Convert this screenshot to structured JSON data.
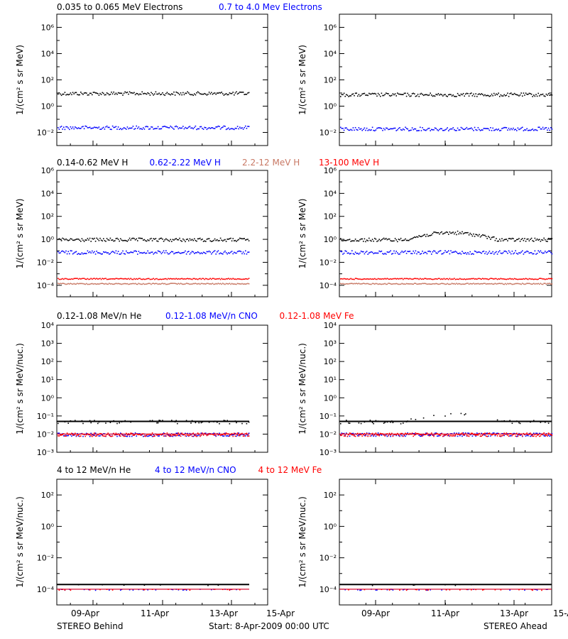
{
  "footer": {
    "left": "STEREO Behind",
    "center": "Start:  8-Apr-2009 00:00 UTC",
    "right": "STEREO Ahead"
  },
  "colors": {
    "black": "#000000",
    "blue": "#0000ff",
    "tan": "#c87864",
    "red": "#ff0000"
  },
  "chart_data": [
    {
      "type": "scatter",
      "panel": "Electrons - STEREO Behind",
      "ylabel": "1/(cm² s sr MeV)",
      "yscale": "log",
      "ylim": [
        0.001,
        10000000
      ],
      "yticks": [
        {
          "value": 0.01,
          "label": "10⁻²"
        },
        {
          "value": 1,
          "label": "10⁰"
        },
        {
          "value": 100,
          "label": "10²"
        },
        {
          "value": 10000,
          "label": "10⁴"
        },
        {
          "value": 1000000,
          "label": "10⁶"
        }
      ],
      "xlim": [
        0,
        8
      ],
      "xticks": [
        "09-Apr",
        "11-Apr",
        "13-Apr",
        "15-Apr"
      ],
      "series": [
        {
          "name": "0.035 to 0.065 MeV Electrons",
          "color": "#000000",
          "level": 10
        },
        {
          "name": "0.7 to 4.0 Mev Electrons",
          "color": "#0000ff",
          "level": 0.025
        }
      ]
    },
    {
      "type": "scatter",
      "panel": "Electrons - STEREO Ahead",
      "ylabel": "1/(cm² s sr MeV)",
      "yscale": "log",
      "ylim": [
        0.001,
        10000000
      ],
      "xlim": [
        0,
        8
      ],
      "series": [
        {
          "color": "#000000",
          "level": 8
        },
        {
          "color": "#0000ff",
          "level": 0.02
        }
      ]
    },
    {
      "type": "scatter",
      "panel": "Protons - STEREO Behind",
      "ylabel": "1/(cm² s sr MeV)",
      "yscale": "log",
      "ylim": [
        1e-05,
        1000000
      ],
      "yticks": [
        {
          "value": 0.0001,
          "label": "10⁻⁴"
        },
        {
          "value": 0.01,
          "label": "10⁻²"
        },
        {
          "value": 1,
          "label": "10⁰"
        },
        {
          "value": 100,
          "label": "10²"
        },
        {
          "value": 10000,
          "label": "10⁴"
        },
        {
          "value": 1000000,
          "label": "10⁶"
        }
      ],
      "xlim": [
        0,
        8
      ],
      "series": [
        {
          "name": "0.14-0.62 MeV H",
          "color": "#000000",
          "level": 1
        },
        {
          "name": "0.62-2.22 MeV H",
          "color": "#0000ff",
          "level": 0.08
        },
        {
          "name": "2.2-12 MeV H",
          "color": "#c87864",
          "level": 0.00015
        },
        {
          "name": "13-100 MeV H",
          "color": "#ff0000",
          "level": 0.0004
        }
      ]
    },
    {
      "type": "scatter",
      "panel": "Protons - STEREO Ahead",
      "ylabel": "1/(cm² s sr MeV)",
      "yscale": "log",
      "ylim": [
        1e-05,
        1000000
      ],
      "xlim": [
        0,
        8
      ],
      "series": [
        {
          "color": "#000000",
          "level": 1
        },
        {
          "color": "#0000ff",
          "level": 0.08
        },
        {
          "color": "#c87864",
          "level": 0.00015
        },
        {
          "color": "#ff0000",
          "level": 0.0004
        }
      ]
    },
    {
      "type": "scatter",
      "panel": "Heavy ions low energy - STEREO Behind",
      "ylabel": "1/(cm² s sr MeV/nuc.)",
      "yscale": "log",
      "ylim": [
        0.001,
        10000
      ],
      "yticks": [
        {
          "value": 0.001,
          "label": "10⁻³"
        },
        {
          "value": 0.01,
          "label": "10⁻²"
        },
        {
          "value": 0.1,
          "label": "10⁻¹"
        },
        {
          "value": 1,
          "label": "10⁰"
        },
        {
          "value": 10,
          "label": "10¹"
        },
        {
          "value": 100,
          "label": "10²"
        },
        {
          "value": 1000,
          "label": "10³"
        },
        {
          "value": 10000,
          "label": "10⁴"
        }
      ],
      "xlim": [
        0,
        8
      ],
      "series": [
        {
          "name": "0.12-1.08 MeV/n He",
          "color": "#000000",
          "level": 0.05
        },
        {
          "name": "0.12-1.08 MeV/n CNO",
          "color": "#0000ff",
          "level": 0.01
        },
        {
          "name": "0.12-1.08 MeV Fe",
          "color": "#ff0000",
          "level": 0.01
        }
      ]
    },
    {
      "type": "scatter",
      "panel": "Heavy ions low energy - STEREO Ahead",
      "ylabel": "1/(cm² s sr MeV/nuc.)",
      "yscale": "log",
      "ylim": [
        0.001,
        10000
      ],
      "xlim": [
        0,
        8
      ],
      "series": [
        {
          "color": "#000000",
          "level": 0.05
        },
        {
          "color": "#0000ff",
          "level": 0.01
        },
        {
          "color": "#ff0000",
          "level": 0.01
        }
      ]
    },
    {
      "type": "scatter",
      "panel": "Heavy ions high energy - STEREO Behind",
      "ylabel": "1/(cm² s sr MeV/nuc.)",
      "yscale": "log",
      "ylim": [
        1e-05,
        1000
      ],
      "yticks": [
        {
          "value": 0.0001,
          "label": "10⁻⁴"
        },
        {
          "value": 0.01,
          "label": "10⁻²"
        },
        {
          "value": 1,
          "label": "10⁰"
        },
        {
          "value": 100,
          "label": "10²"
        }
      ],
      "xlim": [
        0,
        8
      ],
      "series": [
        {
          "name": "4 to 12 MeV/n He",
          "color": "#000000",
          "level": 0.0002
        },
        {
          "name": "4 to 12 MeV/n CNO",
          "color": "#0000ff",
          "level": 0.0001
        },
        {
          "name": "4 to 12 MeV Fe",
          "color": "#ff0000",
          "level": 0.0001
        }
      ]
    },
    {
      "type": "scatter",
      "panel": "Heavy ions high energy - STEREO Ahead",
      "ylabel": "1/(cm² s sr MeV/nuc.)",
      "yscale": "log",
      "ylim": [
        1e-05,
        1000
      ],
      "xlim": [
        0,
        8
      ],
      "series": [
        {
          "color": "#000000",
          "level": 0.0002
        },
        {
          "color": "#0000ff",
          "level": 0.0001
        },
        {
          "color": "#ff0000",
          "level": 0.0001
        }
      ]
    }
  ]
}
